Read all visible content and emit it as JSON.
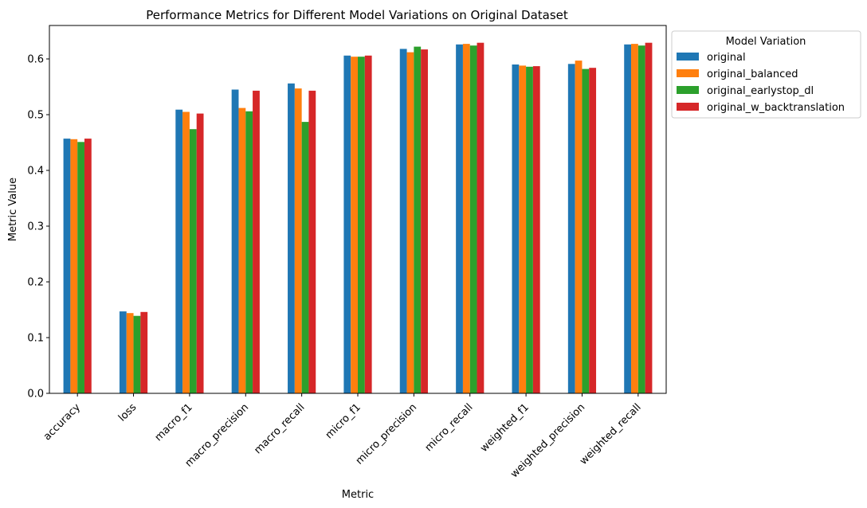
{
  "chart_data": {
    "type": "bar",
    "title": "Performance Metrics for Different Model Variations on Original Dataset",
    "xlabel": "Metric",
    "ylabel": "Metric Value",
    "ylim": [
      0,
      0.66
    ],
    "yticks": [
      "0.0",
      "0.1",
      "0.2",
      "0.3",
      "0.4",
      "0.5",
      "0.6"
    ],
    "grid": false,
    "legend": {
      "title": "Model Variation",
      "placement": "outside-top-right"
    },
    "categories": [
      "accuracy",
      "loss",
      "macro_f1",
      "macro_precision",
      "macro_recall",
      "micro_f1",
      "micro_precision",
      "micro_recall",
      "weighted_f1",
      "weighted_precision",
      "weighted_recall"
    ],
    "series": [
      {
        "name": "original",
        "color": "#1f77b4",
        "values": [
          0.457,
          0.147,
          0.509,
          0.545,
          0.556,
          0.606,
          0.618,
          0.626,
          0.59,
          0.591,
          0.626
        ]
      },
      {
        "name": "original_balanced",
        "color": "#ff7f0e",
        "values": [
          0.456,
          0.144,
          0.505,
          0.512,
          0.547,
          0.604,
          0.612,
          0.627,
          0.588,
          0.597,
          0.627
        ]
      },
      {
        "name": "original_earlystop_dl",
        "color": "#2ca02c",
        "values": [
          0.451,
          0.139,
          0.474,
          0.506,
          0.487,
          0.604,
          0.622,
          0.624,
          0.586,
          0.582,
          0.624
        ]
      },
      {
        "name": "original_w_backtranslation",
        "color": "#d62728",
        "values": [
          0.457,
          0.146,
          0.502,
          0.543,
          0.543,
          0.606,
          0.617,
          0.629,
          0.587,
          0.584,
          0.629
        ]
      }
    ]
  }
}
